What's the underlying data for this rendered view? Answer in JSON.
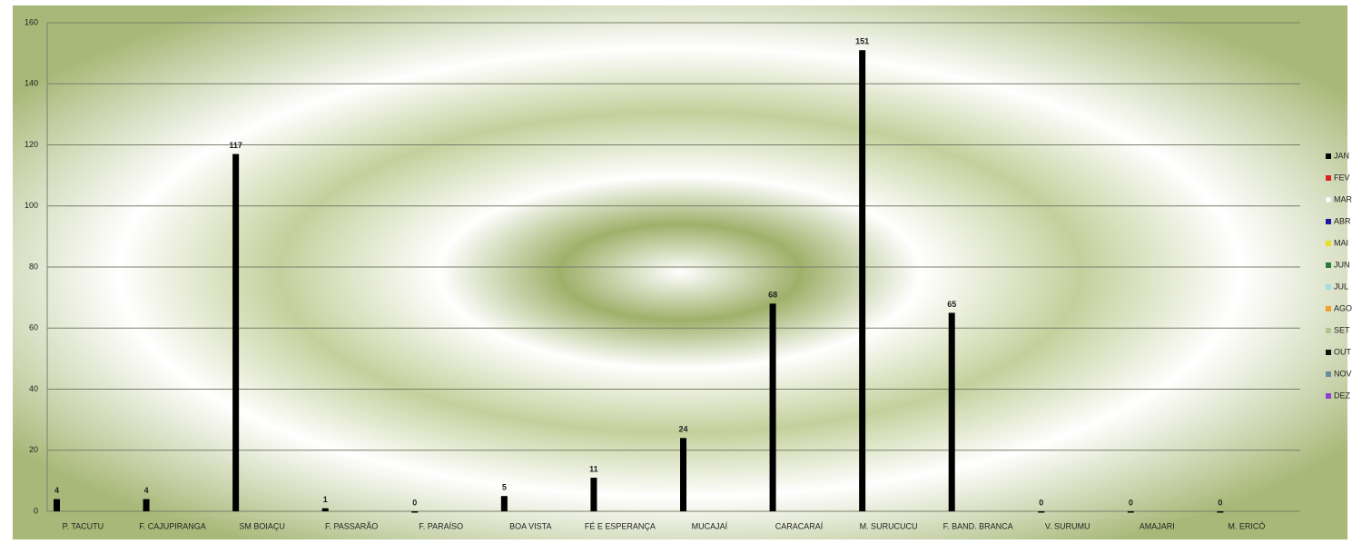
{
  "chart_data": {
    "type": "bar",
    "categories": [
      "P. TACUTU",
      "F. CAJUPIRANGA",
      "SM BOIAÇU",
      "F. PASSARÃO",
      "F. PARAÍSO",
      "BOA VISTA",
      "FÉ E ESPERANÇA",
      "MUCAJAÍ",
      "CARACARAÍ",
      "M. SURUCUCU",
      "F. BAND. BRANCA",
      "V. SURUMU",
      "AMAJARI",
      "M. ERICÓ"
    ],
    "series": [
      {
        "name": "JAN",
        "color": "#000000",
        "values": [
          4,
          4,
          117,
          1,
          0,
          5,
          11,
          24,
          68,
          151,
          65,
          0,
          0,
          0
        ]
      },
      {
        "name": "FEV",
        "color": "#e02020"
      },
      {
        "name": "MAR",
        "color": "#ffffff"
      },
      {
        "name": "ABR",
        "color": "#1a1aa0"
      },
      {
        "name": "MAI",
        "color": "#e8e020"
      },
      {
        "name": "JUN",
        "color": "#2a7a3a"
      },
      {
        "name": "JUL",
        "color": "#a0e0e0"
      },
      {
        "name": "AGO",
        "color": "#f0a030"
      },
      {
        "name": "SET",
        "color": "#b0c890"
      },
      {
        "name": "OUT",
        "color": "#111111"
      },
      {
        "name": "NOV",
        "color": "#6a8aa0"
      },
      {
        "name": "DEZ",
        "color": "#8a40d0"
      }
    ],
    "ylim": [
      0,
      160
    ],
    "yticks": [
      0,
      20,
      40,
      60,
      80,
      100,
      120,
      140,
      160
    ],
    "grid": true,
    "legend": "right"
  }
}
